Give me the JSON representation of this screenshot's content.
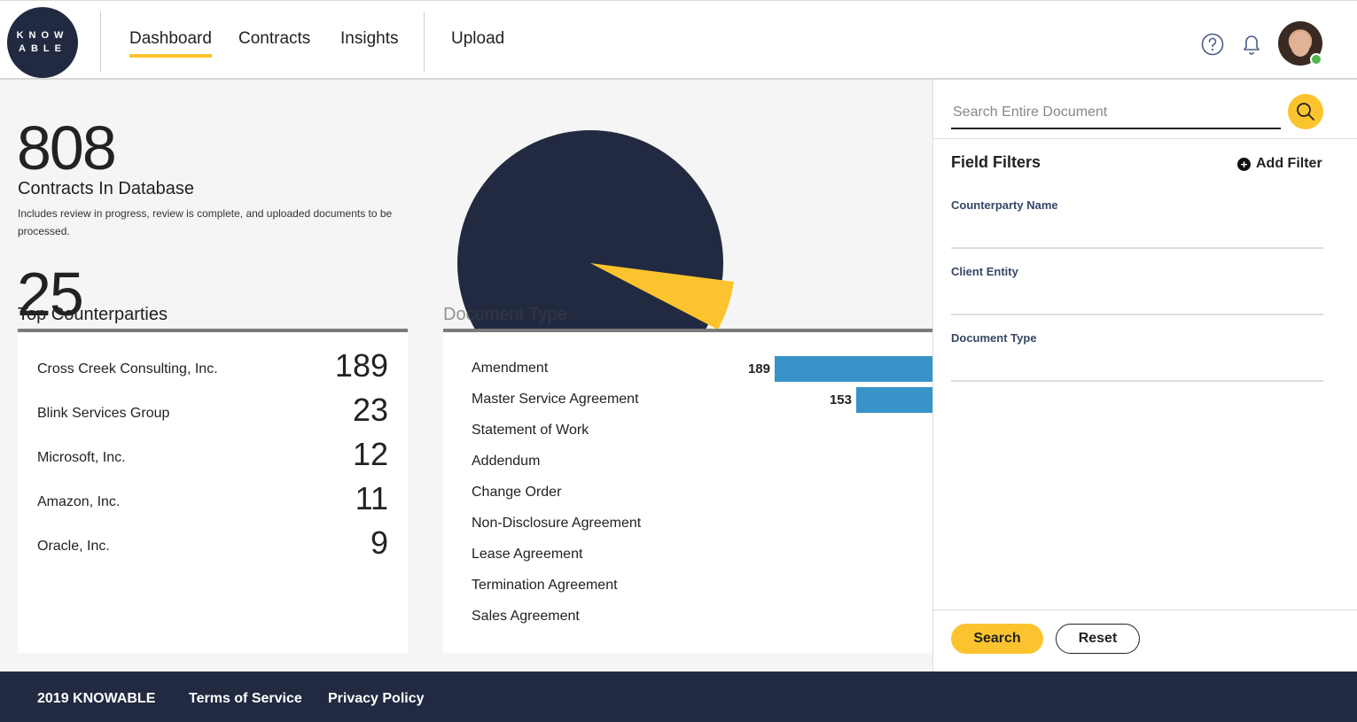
{
  "header": {
    "logo_line1": "KNOW",
    "logo_line2": "ABLE",
    "nav": [
      "Dashboard",
      "Contracts",
      "Insights"
    ],
    "upload": "Upload",
    "icons": [
      "help-icon",
      "bell-icon"
    ],
    "active_color": "#fbc42e"
  },
  "stats": {
    "contracts_count": "808",
    "contracts_label": "Contracts In Database",
    "contracts_note": "Includes review in progress, review is complete, and uploaded documents to be processed.",
    "second_count": "25"
  },
  "top_counterparties": {
    "title": "Top Counterparties",
    "rows": [
      {
        "name": "Cross Creek Consulting, Inc.",
        "count": "189"
      },
      {
        "name": "Blink Services Group",
        "count": "23"
      },
      {
        "name": "Microsoft, Inc.",
        "count": "12"
      },
      {
        "name": "Amazon, Inc.",
        "count": "11"
      },
      {
        "name": "Oracle, Inc.",
        "count": "9"
      }
    ]
  },
  "document_type": {
    "title": "Document Type",
    "rows": [
      {
        "name": "Amendment",
        "count": "189",
        "value": 189
      },
      {
        "name": "Master Service Agreement",
        "count": "153",
        "value": 153
      },
      {
        "name": "Statement of Work"
      },
      {
        "name": "Addendum"
      },
      {
        "name": "Change Order"
      },
      {
        "name": "Non-Disclosure Agreement"
      },
      {
        "name": "Lease Agreement"
      },
      {
        "name": "Termination Agreement"
      },
      {
        "name": "Sales Agreement"
      }
    ],
    "bar_color": "#3893c8"
  },
  "pie": {
    "colors": {
      "main": "#222a42",
      "slice": "#fbc42e"
    }
  },
  "sidebar": {
    "search_placeholder": "Search Entire Document",
    "field_filters": "Field Filters",
    "add_filter": "Add Filter",
    "filters": [
      "Counterparty Name",
      "Client Entity",
      "Document Type"
    ],
    "search_button": "Search",
    "reset_button": "Reset"
  },
  "footer": {
    "copyright": "2019 KNOWABLE",
    "terms": "Terms of Service",
    "privacy": "Privacy Policy"
  }
}
